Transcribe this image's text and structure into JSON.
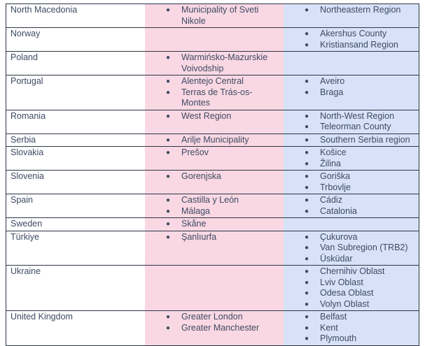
{
  "table": {
    "description": "Country regions table",
    "colors": {
      "pink_column": "#f9d8e3",
      "blue_column": "#d7e2f8",
      "border": "#2e3545",
      "text": "#3e4a63"
    },
    "bullet_glyph": "●",
    "rows": [
      {
        "country": "North Macedonia",
        "pink": [
          "Municipality of Sveti Nikole"
        ],
        "blue": [
          "Northeastern Region"
        ]
      },
      {
        "country": "Norway",
        "pink": [],
        "blue": [
          "Akershus County",
          "Kristiansand Region"
        ]
      },
      {
        "country": "Poland",
        "pink": [
          "Warmińsko-Mazurskie Voivodship"
        ],
        "blue": []
      },
      {
        "country": "Portugal",
        "pink": [
          "Alentejo Central",
          "Terras de Trás-os-Montes"
        ],
        "blue": [
          "Aveiro",
          "Braga"
        ]
      },
      {
        "country": "Romania",
        "pink": [
          "West Region"
        ],
        "blue": [
          "North-West Region",
          "Teleorman County"
        ]
      },
      {
        "country": "Serbia",
        "pink": [
          "Arilje Municipality"
        ],
        "blue": [
          "Southern Serbia region"
        ]
      },
      {
        "country": "Slovakia",
        "pink": [
          "Prešov"
        ],
        "blue": [
          "Košice",
          "Žilina"
        ]
      },
      {
        "country": "Slovenia",
        "pink": [
          "Gorenjska"
        ],
        "blue": [
          "Goriška",
          "Trbovlje"
        ]
      },
      {
        "country": "Spain",
        "pink": [
          "Castilla y León",
          "Málaga"
        ],
        "blue": [
          "Cádiz",
          "Catalonia"
        ]
      },
      {
        "country": "Sweden",
        "pink": [
          "Skåne"
        ],
        "blue": []
      },
      {
        "country": "Türkiye",
        "pink": [
          "Şanlıurfa"
        ],
        "blue": [
          "Çukurova",
          "Van Subregion (TRB2)",
          "Üsküdar"
        ]
      },
      {
        "country": "Ukraine",
        "pink": [],
        "blue": [
          "Chernihiv Oblast",
          "Lviv Oblast",
          "Odesa Oblast",
          "Volyn Oblast"
        ]
      },
      {
        "country": "United Kingdom",
        "pink": [
          "Greater London",
          "Greater Manchester"
        ],
        "blue": [
          "Belfast",
          "Kent",
          "Plymouth"
        ]
      }
    ]
  }
}
